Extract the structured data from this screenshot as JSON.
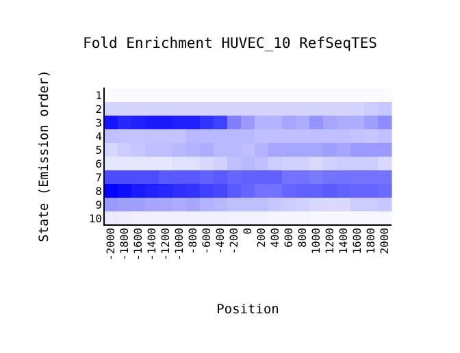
{
  "chart_data": {
    "type": "heatmap",
    "title": "Fold Enrichment HUVEC_10 RefSeqTES",
    "xlabel": "Position",
    "ylabel": "State (Emission order)",
    "x_categories": [
      "-2000",
      "-1800",
      "-1600",
      "-1400",
      "-1200",
      "-1000",
      "-800",
      "-600",
      "-400",
      "-200",
      "0",
      "200",
      "400",
      "600",
      "800",
      "1000",
      "1200",
      "1400",
      "1600",
      "1800",
      "2000"
    ],
    "y_categories": [
      "1",
      "2",
      "3",
      "4",
      "5",
      "6",
      "7",
      "8",
      "9",
      "10"
    ],
    "color_low": "#ffffff",
    "color_high": "#0000ff",
    "value_scale": [
      0,
      1
    ],
    "values": [
      [
        0.02,
        0.02,
        0.02,
        0.02,
        0.02,
        0.02,
        0.02,
        0.02,
        0.02,
        0.02,
        0.02,
        0.02,
        0.02,
        0.02,
        0.02,
        0.02,
        0.02,
        0.02,
        0.02,
        0.02,
        0.02
      ],
      [
        0.17,
        0.17,
        0.17,
        0.17,
        0.17,
        0.17,
        0.17,
        0.17,
        0.17,
        0.17,
        0.17,
        0.17,
        0.17,
        0.17,
        0.17,
        0.17,
        0.17,
        0.17,
        0.17,
        0.2,
        0.22
      ],
      [
        0.92,
        0.85,
        0.88,
        0.9,
        0.9,
        0.88,
        0.88,
        0.8,
        0.75,
        0.5,
        0.4,
        0.3,
        0.3,
        0.35,
        0.32,
        0.42,
        0.35,
        0.32,
        0.32,
        0.38,
        0.45
      ],
      [
        0.25,
        0.24,
        0.24,
        0.24,
        0.24,
        0.24,
        0.28,
        0.28,
        0.28,
        0.28,
        0.28,
        0.25,
        0.25,
        0.25,
        0.25,
        0.25,
        0.25,
        0.25,
        0.24,
        0.22,
        0.25
      ],
      [
        0.16,
        0.2,
        0.22,
        0.25,
        0.25,
        0.28,
        0.3,
        0.32,
        0.28,
        0.28,
        0.25,
        0.3,
        0.35,
        0.35,
        0.35,
        0.35,
        0.38,
        0.35,
        0.4,
        0.4,
        0.4
      ],
      [
        0.1,
        0.1,
        0.1,
        0.1,
        0.1,
        0.12,
        0.12,
        0.15,
        0.18,
        0.25,
        0.28,
        0.25,
        0.2,
        0.18,
        0.18,
        0.15,
        0.18,
        0.2,
        0.2,
        0.2,
        0.15
      ],
      [
        0.7,
        0.7,
        0.7,
        0.7,
        0.65,
        0.65,
        0.65,
        0.62,
        0.65,
        0.6,
        0.62,
        0.62,
        0.62,
        0.55,
        0.55,
        0.52,
        0.55,
        0.55,
        0.55,
        0.55,
        0.55
      ],
      [
        0.98,
        0.95,
        0.9,
        0.88,
        0.85,
        0.82,
        0.8,
        0.75,
        0.72,
        0.65,
        0.6,
        0.55,
        0.55,
        0.6,
        0.62,
        0.62,
        0.65,
        0.62,
        0.6,
        0.6,
        0.58
      ],
      [
        0.4,
        0.38,
        0.38,
        0.35,
        0.35,
        0.33,
        0.35,
        0.3,
        0.28,
        0.25,
        0.25,
        0.25,
        0.22,
        0.2,
        0.18,
        0.16,
        0.15,
        0.15,
        0.2,
        0.2,
        0.22
      ],
      [
        0.08,
        0.07,
        0.06,
        0.06,
        0.06,
        0.06,
        0.06,
        0.06,
        0.06,
        0.05,
        0.05,
        0.05,
        0.04,
        0.04,
        0.04,
        0.03,
        0.03,
        0.03,
        0.03,
        0.03,
        0.03
      ]
    ]
  }
}
